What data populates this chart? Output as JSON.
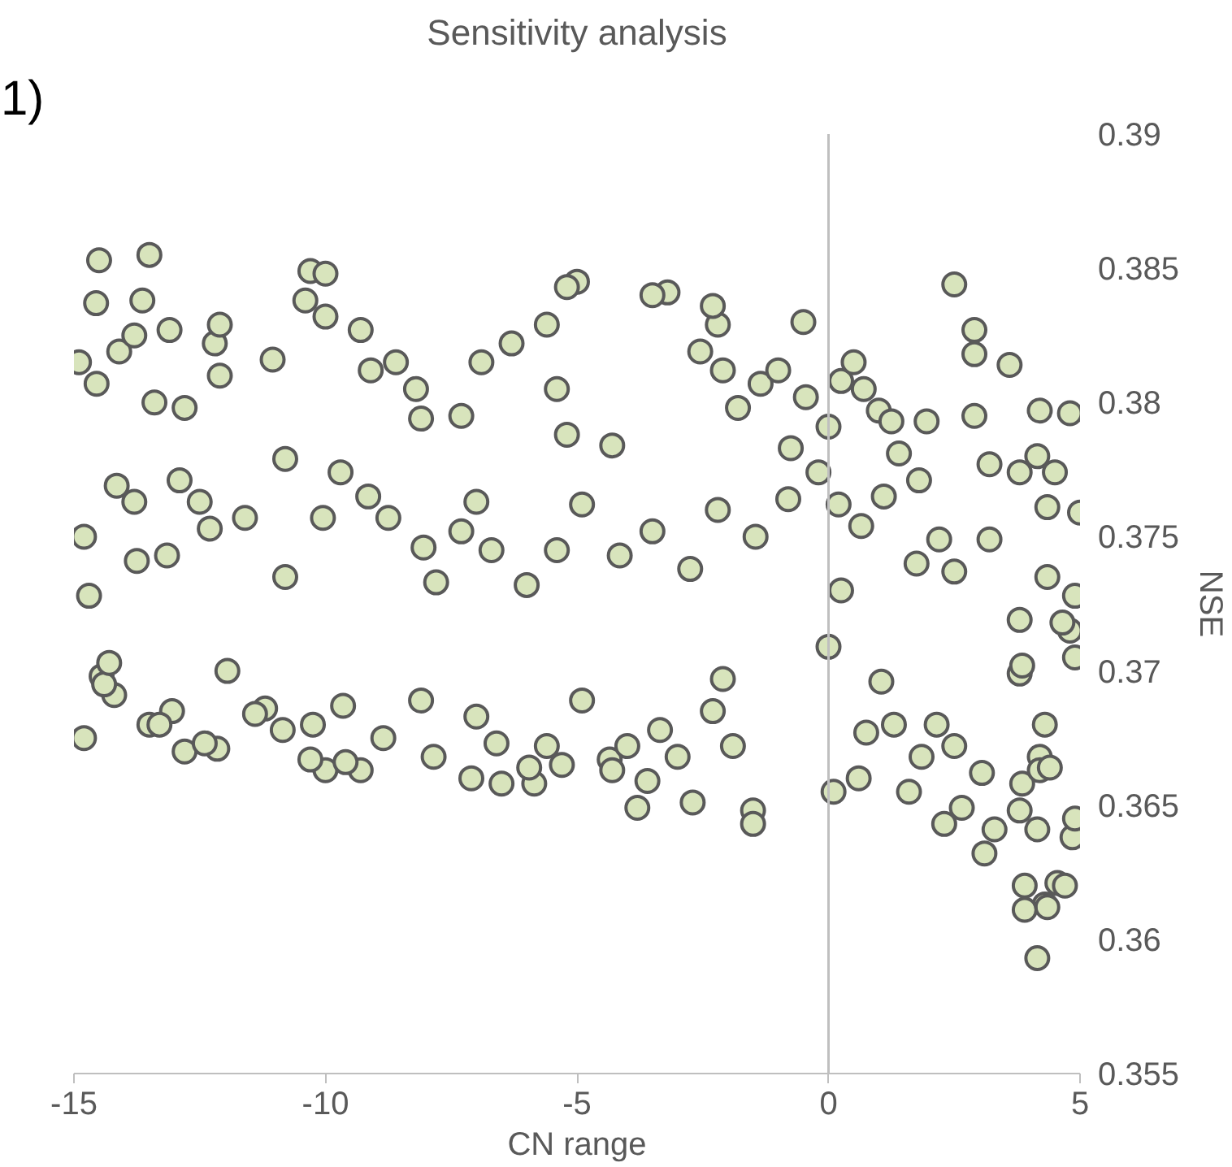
{
  "chart_data": {
    "type": "scatter",
    "title": "Sensitivity analysis",
    "xlabel": "CN range",
    "ylabel": "NSE",
    "annotations": [
      "1)"
    ],
    "xlim": [
      -15,
      5
    ],
    "xticks": [
      -15,
      -10,
      -5,
      0,
      5
    ],
    "ylim": [
      0.355,
      0.39
    ],
    "yticks": [
      0.355,
      0.36,
      0.365,
      0.37,
      0.375,
      0.38,
      0.385,
      0.39
    ],
    "marker": "circle",
    "ref_lines": [
      {
        "axis": "x",
        "value": 0,
        "color": "#bfbfbf"
      }
    ],
    "series": [
      {
        "color": "#d8e4bc",
        "x": [
          -14.56,
          -13.64,
          -14.9,
          -14.1,
          -13.8,
          -13.1,
          -14.55,
          -13.4,
          -12.8,
          -12.2,
          -12.1,
          -12.1,
          -11.05,
          -10.4,
          -10.0,
          -9.3,
          -9.1,
          -8.6,
          -8.2,
          -8.1,
          -7.3,
          -6.9,
          -7.0,
          -7.3,
          -6.3,
          -5.6,
          -5.0,
          -5.4,
          -5.2,
          -4.3,
          -3.2,
          -2.2,
          -2.55,
          -2.1,
          -1.8,
          -1.35,
          -1.0,
          -0.45,
          0.0,
          -0.75,
          -0.2,
          0.25,
          0.7,
          1.0,
          1.25,
          1.4,
          1.8,
          1.95,
          2.9,
          2.9,
          3.2,
          3.8,
          4.15,
          4.35,
          5.0,
          4.5,
          2.9,
          4.2,
          -14.8,
          -14.7,
          -14.15,
          -13.8,
          -13.75,
          -13.15,
          -12.9,
          -12.5,
          -12.3,
          -11.6,
          -10.8,
          -10.8,
          -10.05,
          -9.7,
          -9.15,
          -8.75,
          -8.05,
          -7.8,
          -6.7,
          -6.0,
          -5.4,
          -4.9,
          -4.15,
          -3.5,
          -2.75,
          -2.2,
          -1.45,
          -0.8,
          0.2,
          0.65,
          1.1,
          1.75,
          2.2,
          2.5,
          3.2,
          3.8,
          4.35,
          4.9,
          0.25,
          0.0,
          -14.8,
          -14.45,
          -14.2,
          -13.5,
          -13.05,
          -12.8,
          -12.15,
          -11.95,
          -11.2,
          -10.85,
          -10.0,
          -10.25,
          -9.65,
          -9.3,
          -8.85,
          -7.85,
          -8.1,
          -7.0,
          -5.85,
          -5.6,
          -5.3,
          -4.9,
          -4.35,
          -3.8,
          -3.35,
          -2.7,
          -1.9,
          -1.5,
          -1.5,
          0.1,
          0.6,
          0.75,
          1.05,
          1.3,
          1.6,
          1.85,
          2.15,
          2.5,
          2.3,
          2.65,
          3.1,
          3.05,
          3.3,
          3.85,
          4.2,
          4.15,
          3.9,
          4.3,
          4.15,
          4.35,
          3.9,
          4.55,
          4.7,
          4.85,
          4.9,
          3.8,
          4.2,
          4.4,
          4.3,
          3.8,
          3.85,
          4.8,
          4.65,
          4.9,
          -2.3,
          -2.1,
          -3.0,
          -3.6,
          -4.3,
          -4.0,
          -5.95,
          -6.5,
          -7.1,
          -6.6,
          -9.6,
          -10.3,
          -11.4,
          -12.4,
          -13.3,
          -14.4,
          -14.3,
          -14.5,
          -13.5,
          -10.3,
          -10.0,
          -5.2,
          -3.5,
          -2.3,
          -0.5,
          0.5,
          2.5,
          3.6,
          4.8
        ],
        "values": [
          0.3837,
          0.3838,
          0.3815,
          0.3819,
          0.3825,
          0.3827,
          0.3807,
          0.38,
          0.3798,
          0.3822,
          0.3829,
          0.381,
          0.3816,
          0.3838,
          0.3832,
          0.3827,
          0.3812,
          0.3815,
          0.3805,
          0.3794,
          0.3795,
          0.3815,
          0.3763,
          0.3752,
          0.3822,
          0.3829,
          0.3845,
          0.3805,
          0.3788,
          0.3784,
          0.3841,
          0.3829,
          0.3819,
          0.3812,
          0.3798,
          0.3807,
          0.3812,
          0.3802,
          0.3791,
          0.3783,
          0.3774,
          0.3808,
          0.3805,
          0.3797,
          0.3793,
          0.3781,
          0.3771,
          0.3793,
          0.3795,
          0.3818,
          0.3777,
          0.3774,
          0.378,
          0.3761,
          0.3759,
          0.3774,
          0.3827,
          0.3797,
          0.375,
          0.3728,
          0.3769,
          0.3763,
          0.3741,
          0.3743,
          0.3771,
          0.3763,
          0.3753,
          0.3757,
          0.3735,
          0.3779,
          0.3757,
          0.3774,
          0.3765,
          0.3757,
          0.3746,
          0.3733,
          0.3745,
          0.3732,
          0.3745,
          0.3762,
          0.3743,
          0.3752,
          0.3738,
          0.376,
          0.375,
          0.3764,
          0.3762,
          0.3754,
          0.3765,
          0.374,
          0.3749,
          0.3737,
          0.3749,
          0.3719,
          0.3735,
          0.3728,
          0.373,
          0.3709,
          0.3675,
          0.3698,
          0.3691,
          0.368,
          0.3685,
          0.367,
          0.3671,
          0.37,
          0.3686,
          0.3678,
          0.3663,
          0.368,
          0.3687,
          0.3663,
          0.3675,
          0.3668,
          0.3689,
          0.3683,
          0.3658,
          0.3672,
          0.3665,
          0.3689,
          0.3667,
          0.3649,
          0.3678,
          0.3651,
          0.3672,
          0.3648,
          0.3643,
          0.3655,
          0.366,
          0.3677,
          0.3696,
          0.368,
          0.3655,
          0.3668,
          0.368,
          0.3672,
          0.3643,
          0.3649,
          0.3632,
          0.3662,
          0.3641,
          0.3658,
          0.3668,
          0.3641,
          0.362,
          0.3613,
          0.3593,
          0.3612,
          0.3611,
          0.3621,
          0.362,
          0.3638,
          0.3645,
          0.3648,
          0.3663,
          0.3664,
          0.368,
          0.3699,
          0.3702,
          0.3715,
          0.3718,
          0.3705,
          0.3685,
          0.3697,
          0.3668,
          0.3659,
          0.3663,
          0.3672,
          0.3664,
          0.3658,
          0.366,
          0.3673,
          0.3666,
          0.3667,
          0.3684,
          0.3673,
          0.368,
          0.3695,
          0.3703,
          0.3853,
          0.3855,
          0.3849,
          0.3848,
          0.3843,
          0.384,
          0.3836,
          0.383,
          0.3815,
          0.3844,
          0.3814,
          0.3796
        ]
      }
    ]
  }
}
